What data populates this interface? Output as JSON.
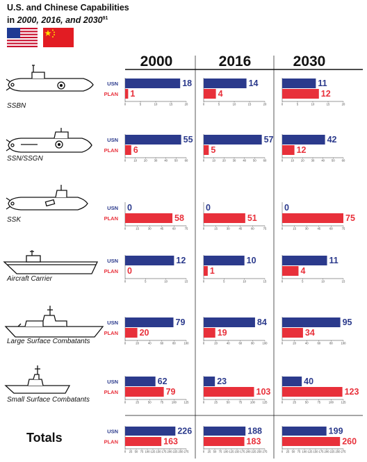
{
  "title": {
    "line1": "U.S. and Chinese Capabilities",
    "line2_pre": "in ",
    "line2_years": "2000, 2016, and 2030",
    "footnote": "91"
  },
  "flags": [
    "us-flag",
    "china-flag"
  ],
  "colors": {
    "usn": "#2b3a8c",
    "plan": "#e8303a"
  },
  "chart_data": {
    "type": "bar",
    "years": [
      "2000",
      "2016",
      "2030"
    ],
    "series_labels": [
      "USN",
      "PLAN"
    ],
    "categories": [
      {
        "name": "SSBN",
        "icon": "ssbn-icon",
        "xticks": [
          0,
          5,
          10,
          15,
          20
        ],
        "xmax": 20,
        "usn": [
          18,
          14,
          11
        ],
        "plan": [
          1,
          4,
          12
        ]
      },
      {
        "name": "SSN/SSGN",
        "icon": "ssn-icon",
        "xticks": [
          0,
          10,
          20,
          30,
          40,
          50,
          60
        ],
        "xmax": 60,
        "usn": [
          55,
          57,
          42
        ],
        "plan": [
          6,
          5,
          12
        ]
      },
      {
        "name": "SSK",
        "icon": "ssk-icon",
        "xticks": [
          0,
          15,
          30,
          45,
          60,
          75
        ],
        "xmax": 75,
        "usn": [
          0,
          0,
          0
        ],
        "plan": [
          58,
          51,
          75
        ]
      },
      {
        "name": "Aircraft Carrier",
        "icon": "aircraft-carrier-icon",
        "xticks": [
          0,
          5,
          10,
          15
        ],
        "xmax": 15,
        "usn": [
          12,
          10,
          11
        ],
        "plan": [
          0,
          1,
          4
        ]
      },
      {
        "name": "Large Surface Combatants",
        "icon": "destroyer-icon",
        "xticks": [
          0,
          20,
          40,
          60,
          80,
          100
        ],
        "xmax": 100,
        "usn": [
          79,
          84,
          95
        ],
        "plan": [
          20,
          19,
          34
        ]
      },
      {
        "name": "Small Surface Combatants",
        "icon": "frigate-icon",
        "xticks": [
          0,
          25,
          50,
          75,
          100,
          125
        ],
        "xmax": 125,
        "usn": [
          62,
          23,
          40
        ],
        "plan": [
          79,
          103,
          123
        ]
      },
      {
        "name": "Totals",
        "icon": "",
        "xticks": [
          0,
          25,
          50,
          75,
          100,
          125,
          150,
          175,
          200,
          225,
          250,
          275
        ],
        "xmax": 275,
        "usn": [
          226,
          188,
          199
        ],
        "plan": [
          163,
          183,
          260
        ]
      }
    ]
  }
}
